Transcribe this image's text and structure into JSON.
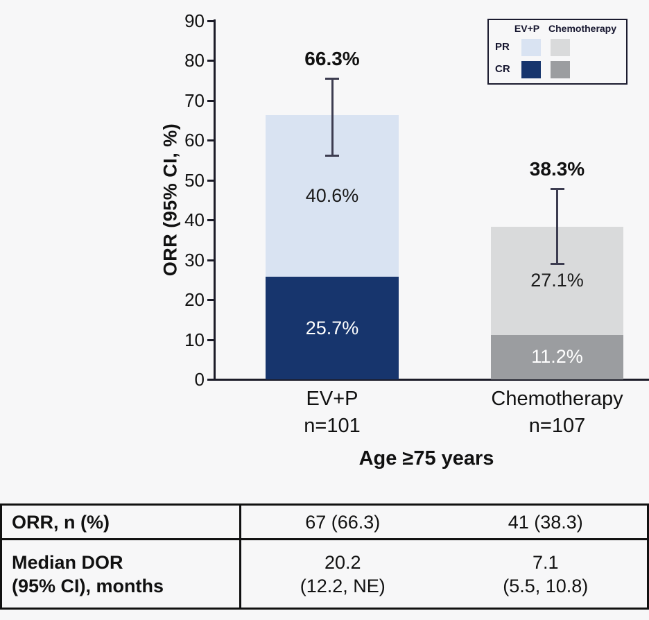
{
  "page": {
    "background": "#f7f7f8"
  },
  "chart_data": {
    "type": "bar",
    "stacked": true,
    "title": "",
    "ylabel": "ORR (95% CI, %)",
    "x_axis_title": "Age ≥75 years",
    "ylim": [
      0,
      90
    ],
    "yticks": [
      0,
      10,
      20,
      30,
      40,
      50,
      60,
      70,
      80,
      90
    ],
    "grid": false,
    "legend_position": "top-right",
    "groups": [
      {
        "key": "evp",
        "name": "EV+P",
        "sublabel": "n=101",
        "total": 66.3,
        "total_label": "66.3%",
        "ci_low": 56.1,
        "ci_high": 75.6,
        "segments": [
          {
            "key": "cr",
            "name": "CR",
            "value": 25.7,
            "label": "25.7%",
            "color": "#17356d",
            "text_color": "#ffffff"
          },
          {
            "key": "pr",
            "name": "PR",
            "value": 40.6,
            "label": "40.6%",
            "color": "#d9e3f2",
            "text_color": "#1a1a1a"
          }
        ]
      },
      {
        "key": "chemo",
        "name": "Chemotherapy",
        "sublabel": "n=107",
        "total": 38.3,
        "total_label": "38.3%",
        "ci_low": 28.9,
        "ci_high": 47.9,
        "segments": [
          {
            "key": "cr",
            "name": "CR",
            "value": 11.2,
            "label": "11.2%",
            "color": "#9b9da0",
            "text_color": "#ffffff"
          },
          {
            "key": "pr",
            "name": "PR",
            "value": 27.1,
            "label": "27.1%",
            "color": "#d9dadb",
            "text_color": "#1a1a1a"
          }
        ]
      }
    ],
    "legend": {
      "columns": [
        "EV+P",
        "Chemotherapy"
      ],
      "rows": [
        {
          "label": "PR",
          "swatches": [
            "#d9e3f2",
            "#d9dadb"
          ]
        },
        {
          "label": "CR",
          "swatches": [
            "#17356d",
            "#9b9da0"
          ]
        }
      ]
    }
  },
  "table": {
    "rows": [
      {
        "key": "orr",
        "label_lines": [
          "ORR, n (%)"
        ],
        "values": [
          [
            "67 (66.3)"
          ],
          [
            "41 (38.3)"
          ]
        ]
      },
      {
        "key": "dor",
        "label_lines": [
          "Median DOR",
          "(95% CI), months"
        ],
        "values": [
          [
            "20.2",
            "(12.2, NE)"
          ],
          [
            "7.1",
            "(5.5, 10.8)"
          ]
        ]
      }
    ]
  }
}
